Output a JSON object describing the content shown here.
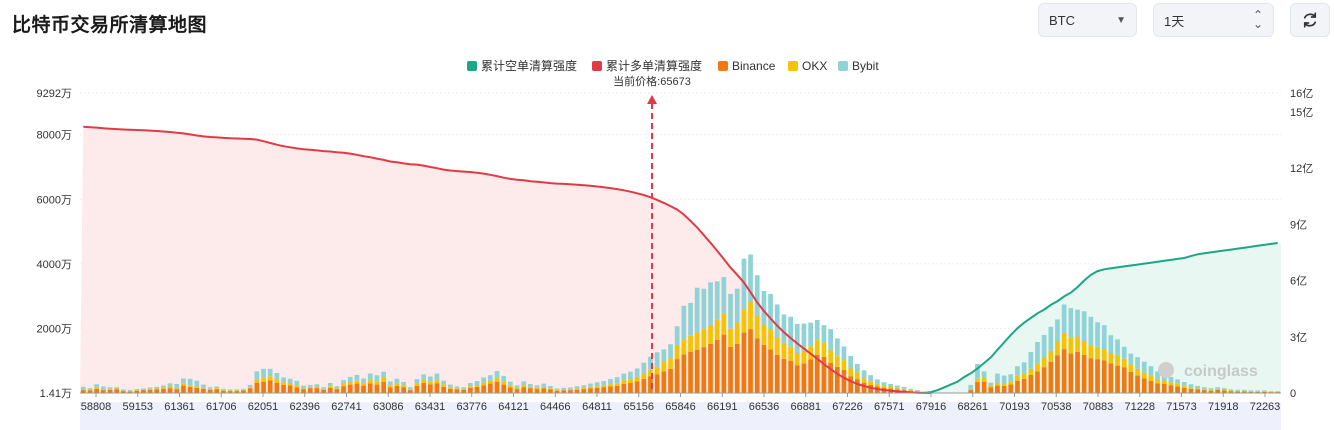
{
  "page": {
    "title": "比特币交易所清算地图"
  },
  "controls": {
    "coin": {
      "value": "BTC",
      "icon": "caret-down-icon"
    },
    "period": {
      "value": "1天",
      "icon": "up-down-icon"
    },
    "refresh_icon": "refresh-icon"
  },
  "colors": {
    "short_cum": "#1da686",
    "long_cum": "#e23a45",
    "binance": "#f07a10",
    "okx": "#f5c400",
    "bybit": "#8fd3d6",
    "long_fill": "#fde8e8",
    "short_fill": "#e6f6f1"
  },
  "chart_data": {
    "type": "bar",
    "title": "",
    "legend": [
      "累计空单清算强度",
      "累计多单清算强度",
      "Binance",
      "OKX",
      "Bybit"
    ],
    "legend_position": "top-center",
    "current_price_label": "当前价格:65673",
    "current_price": 65673,
    "watermark": "coinglass",
    "y_left_ticks": [
      "1.41万",
      "2000万",
      "4000万",
      "6000万",
      "8000万",
      "9292万"
    ],
    "y_left_values": [
      14100,
      20000000,
      40000000,
      60000000,
      80000000,
      92920000
    ],
    "y_right_ticks": [
      "0",
      "3亿",
      "6亿",
      "9亿",
      "12亿",
      "15亿",
      "16亿"
    ],
    "y_right_values": [
      0,
      3,
      6,
      9,
      12,
      15,
      16
    ],
    "x_ticks": [
      "58808",
      "59153",
      "61361",
      "61706",
      "62051",
      "62396",
      "62741",
      "63086",
      "63431",
      "63776",
      "64121",
      "64466",
      "64811",
      "65156",
      "65846",
      "66191",
      "66536",
      "66881",
      "67226",
      "67571",
      "67916",
      "68261",
      "70193",
      "70538",
      "70883",
      "71228",
      "71573",
      "71918",
      "72263"
    ],
    "bars_million": [
      [
        0.9,
        0.3,
        0.7
      ],
      [
        0.8,
        0.3,
        0.4
      ],
      [
        1.3,
        0.4,
        1.0
      ],
      [
        0.9,
        0.3,
        0.8
      ],
      [
        1.0,
        0.3,
        0.5
      ],
      [
        1.1,
        0.3,
        0.4
      ],
      [
        0.6,
        0.2,
        0.3
      ],
      [
        0.5,
        0.2,
        0.3
      ],
      [
        0.7,
        0.2,
        0.3
      ],
      [
        0.9,
        0.2,
        0.3
      ],
      [
        1.0,
        0.3,
        0.4
      ],
      [
        1.1,
        0.3,
        0.5
      ],
      [
        1.3,
        0.4,
        0.6
      ],
      [
        1.5,
        0.5,
        1.0
      ],
      [
        1.2,
        0.3,
        1.3
      ],
      [
        2.3,
        0.7,
        1.5
      ],
      [
        1.9,
        0.5,
        2.0
      ],
      [
        1.6,
        0.4,
        1.8
      ],
      [
        1.3,
        0.3,
        1.0
      ],
      [
        1.0,
        0.3,
        0.5
      ],
      [
        1.2,
        0.3,
        0.5
      ],
      [
        0.7,
        0.2,
        0.4
      ],
      [
        0.6,
        0.2,
        0.3
      ],
      [
        0.6,
        0.2,
        0.3
      ],
      [
        0.8,
        0.2,
        0.3
      ],
      [
        1.4,
        0.4,
        0.7
      ],
      [
        3.2,
        1.0,
        2.5
      ],
      [
        3.5,
        1.2,
        2.8
      ],
      [
        3.9,
        1.3,
        2.3
      ],
      [
        3.2,
        1.0,
        2.0
      ],
      [
        2.5,
        0.8,
        1.5
      ],
      [
        2.4,
        0.7,
        1.3
      ],
      [
        1.7,
        0.6,
        1.5
      ],
      [
        1.2,
        0.3,
        0.8
      ],
      [
        1.5,
        0.4,
        0.6
      ],
      [
        1.5,
        0.5,
        0.7
      ],
      [
        1.0,
        0.3,
        0.5
      ],
      [
        1.6,
        0.5,
        1.0
      ],
      [
        1.2,
        0.3,
        0.6
      ],
      [
        2.1,
        0.7,
        1.2
      ],
      [
        2.6,
        0.8,
        1.6
      ],
      [
        2.9,
        0.9,
        1.8
      ],
      [
        2.3,
        0.7,
        1.5
      ],
      [
        3.0,
        1.0,
        2.0
      ],
      [
        2.6,
        0.9,
        2.0
      ],
      [
        3.5,
        1.3,
        1.8
      ],
      [
        1.8,
        0.6,
        1.2
      ],
      [
        2.2,
        0.7,
        1.5
      ],
      [
        1.8,
        0.6,
        1.0
      ],
      [
        0.9,
        0.3,
        0.6
      ],
      [
        2.2,
        0.7,
        1.4
      ],
      [
        3.1,
        1.0,
        1.7
      ],
      [
        2.7,
        0.9,
        1.5
      ],
      [
        3.0,
        1.0,
        2.0
      ],
      [
        1.9,
        0.7,
        1.2
      ],
      [
        1.3,
        0.5,
        0.8
      ],
      [
        1.1,
        0.3,
        0.6
      ],
      [
        1.0,
        0.3,
        0.5
      ],
      [
        1.6,
        0.5,
        1.0
      ],
      [
        1.9,
        0.6,
        1.2
      ],
      [
        2.4,
        0.8,
        1.6
      ],
      [
        2.9,
        1.0,
        1.6
      ],
      [
        3.4,
        1.2,
        2.2
      ],
      [
        2.6,
        0.9,
        1.8
      ],
      [
        1.7,
        0.6,
        1.2
      ],
      [
        1.2,
        0.4,
        0.8
      ],
      [
        1.8,
        0.6,
        1.2
      ],
      [
        1.4,
        0.5,
        0.9
      ],
      [
        1.2,
        0.4,
        0.8
      ],
      [
        1.4,
        0.5,
        1.0
      ],
      [
        1.1,
        0.4,
        0.7
      ],
      [
        0.7,
        0.2,
        0.5
      ],
      [
        0.8,
        0.3,
        0.5
      ],
      [
        0.9,
        0.3,
        0.5
      ],
      [
        1.0,
        0.4,
        0.7
      ],
      [
        1.2,
        0.4,
        0.8
      ],
      [
        1.4,
        0.5,
        1.0
      ],
      [
        1.6,
        0.5,
        1.2
      ],
      [
        1.8,
        0.6,
        1.3
      ],
      [
        2.0,
        0.7,
        1.6
      ],
      [
        2.2,
        0.8,
        1.9
      ],
      [
        2.8,
        1.2,
        2.0
      ],
      [
        3.1,
        1.2,
        2.3
      ],
      [
        3.6,
        1.4,
        2.6
      ],
      [
        4.4,
        1.7,
        3.3
      ],
      [
        5.2,
        2.0,
        4.0
      ],
      [
        5.8,
        2.3,
        4.5
      ],
      [
        6.7,
        2.9,
        3.9
      ],
      [
        7.5,
        3.2,
        4.4
      ],
      [
        10.5,
        4.2,
        6.0
      ],
      [
        12.0,
        4.5,
        10.5
      ],
      [
        12.8,
        4.9,
        10.2
      ],
      [
        13.4,
        5.4,
        13.8
      ],
      [
        14.2,
        5.6,
        12.5
      ],
      [
        15.2,
        5.9,
        13.2
      ],
      [
        16.5,
        6.2,
        11.9
      ],
      [
        18.1,
        6.4,
        11.4
      ],
      [
        14.3,
        5.6,
        10.8
      ],
      [
        15.2,
        6.6,
        10.5
      ],
      [
        18.7,
        7.2,
        15.7
      ],
      [
        19.8,
        8.4,
        14.7
      ],
      [
        16.9,
        7.0,
        12.6
      ],
      [
        14.9,
        6.3,
        10.4
      ],
      [
        13.5,
        6.0,
        11.2
      ],
      [
        11.8,
        5.5,
        10.1
      ],
      [
        10.6,
        4.7,
        9.0
      ],
      [
        10.0,
        4.2,
        9.4
      ],
      [
        8.6,
        3.8,
        9.0
      ],
      [
        9.2,
        3.9,
        8.4
      ],
      [
        10.4,
        4.1,
        7.3
      ],
      [
        11.8,
        4.6,
        6.2
      ],
      [
        11.2,
        4.4,
        5.4
      ],
      [
        9.4,
        3.8,
        6.6
      ],
      [
        8.1,
        3.3,
        5.5
      ],
      [
        7.2,
        3.0,
        4.2
      ],
      [
        5.2,
        2.4,
        3.9
      ],
      [
        4.3,
        2.1,
        2.6
      ],
      [
        3.1,
        1.4,
        2.5
      ],
      [
        2.5,
        1.2,
        1.8
      ],
      [
        2.0,
        0.9,
        1.3
      ],
      [
        1.6,
        0.7,
        1.0
      ],
      [
        1.4,
        0.6,
        0.8
      ],
      [
        1.1,
        0.5,
        0.7
      ],
      [
        0.9,
        0.4,
        0.6
      ],
      [
        0.6,
        0.3,
        0.4
      ],
      [
        0.4,
        0.2,
        0.3
      ],
      [
        0.2,
        0.1,
        0.1
      ],
      [
        0,
        0,
        0
      ],
      [
        0,
        0,
        0
      ],
      [
        0,
        0,
        0
      ],
      [
        0,
        0,
        0
      ],
      [
        0,
        0,
        0
      ],
      [
        0,
        0,
        0
      ],
      [
        0.9,
        0.4,
        1.2
      ],
      [
        3.4,
        1.1,
        4.5
      ],
      [
        3.5,
        1.2,
        2.0
      ],
      [
        1.8,
        0.5,
        0.9
      ],
      [
        2.3,
        0.8,
        2.9
      ],
      [
        2.2,
        0.6,
        2.6
      ],
      [
        2.6,
        0.9,
        2.3
      ],
      [
        3.8,
        1.5,
        3.0
      ],
      [
        4.4,
        1.6,
        3.5
      ],
      [
        5.6,
        1.9,
        5.2
      ],
      [
        6.7,
        2.5,
        6.6
      ],
      [
        8.0,
        3.0,
        7.0
      ],
      [
        9.7,
        3.4,
        7.4
      ],
      [
        11.7,
        4.4,
        6.7
      ],
      [
        13.6,
        5.0,
        8.8
      ],
      [
        12.2,
        4.8,
        9.3
      ],
      [
        12.7,
        4.8,
        8.3
      ],
      [
        11.8,
        4.3,
        9.2
      ],
      [
        10.7,
        3.9,
        9.0
      ],
      [
        10.5,
        3.8,
        7.6
      ],
      [
        10.1,
        3.5,
        7.4
      ],
      [
        9.2,
        3.2,
        5.5
      ],
      [
        8.5,
        3.0,
        5.1
      ],
      [
        7.9,
        2.7,
        3.7
      ],
      [
        6.5,
        2.3,
        3.4
      ],
      [
        5.4,
        2.1,
        3.6
      ],
      [
        4.5,
        1.8,
        3.4
      ],
      [
        3.8,
        1.5,
        3.0
      ],
      [
        3.0,
        1.2,
        2.5
      ],
      [
        2.8,
        1.1,
        2.0
      ],
      [
        2.4,
        0.9,
        1.7
      ],
      [
        2.0,
        0.8,
        1.4
      ],
      [
        1.6,
        0.6,
        1.2
      ],
      [
        1.3,
        0.5,
        0.9
      ],
      [
        1.1,
        0.4,
        0.7
      ],
      [
        0.9,
        0.3,
        0.6
      ],
      [
        0.7,
        0.3,
        0.5
      ],
      [
        1.0,
        0.3,
        0.5
      ],
      [
        0.8,
        0.3,
        0.4
      ],
      [
        0.6,
        0.2,
        0.3
      ],
      [
        0.5,
        0.2,
        0.3
      ],
      [
        0.5,
        0.2,
        0.3
      ],
      [
        0.4,
        0.2,
        0.2
      ],
      [
        0.4,
        0.2,
        0.2
      ],
      [
        0.4,
        0.2,
        0.2
      ],
      [
        0.3,
        0.1,
        0.2
      ],
      [
        0.3,
        0.1,
        0.2
      ]
    ],
    "short_cum_yi": [
      0,
      0,
      0,
      0,
      0,
      0,
      0,
      0,
      0,
      0,
      0,
      0,
      0,
      0,
      0,
      0,
      0,
      0,
      0,
      0,
      0,
      0,
      0,
      0,
      0,
      0,
      0,
      0,
      0,
      0,
      0,
      0,
      0,
      0,
      0,
      0,
      0,
      0,
      0,
      0,
      0,
      0,
      0,
      0,
      0,
      0,
      0,
      0,
      0,
      0,
      0,
      0,
      0,
      0,
      0,
      0,
      0,
      0,
      0,
      0,
      0,
      0,
      0,
      0,
      0,
      0,
      0,
      0,
      0,
      0,
      0,
      0,
      0,
      0,
      0,
      0,
      0,
      0,
      0,
      0,
      0,
      0,
      0,
      0,
      0,
      0,
      0,
      0,
      0,
      0,
      0,
      0,
      0,
      0,
      0,
      0,
      0,
      0,
      0,
      0,
      0,
      0,
      0,
      0,
      0,
      0,
      0,
      0,
      0,
      0,
      0,
      0,
      0,
      0,
      0,
      0,
      0,
      0,
      0,
      0,
      0,
      0,
      0,
      0,
      0,
      0,
      0,
      0.05,
      0.15,
      0.3,
      0.45,
      0.6,
      0.85,
      1.05,
      1.3,
      1.6,
      1.9,
      2.3,
      2.7,
      3.1,
      3.45,
      3.75,
      4.0,
      4.25,
      4.45,
      4.7,
      4.9,
      5.15,
      5.35,
      5.65,
      6.0,
      6.3,
      6.5,
      6.6,
      6.65,
      6.7,
      6.75,
      6.8,
      6.85,
      6.9,
      6.95,
      7.0,
      7.05,
      7.1,
      7.15,
      7.2,
      7.3,
      7.4,
      7.45,
      7.5,
      7.55,
      7.6,
      7.65,
      7.7,
      7.75,
      7.8,
      7.85,
      7.9,
      7.95,
      8.0,
      8.05,
      8.1,
      8.15,
      8.2,
      8.25
    ]
  }
}
